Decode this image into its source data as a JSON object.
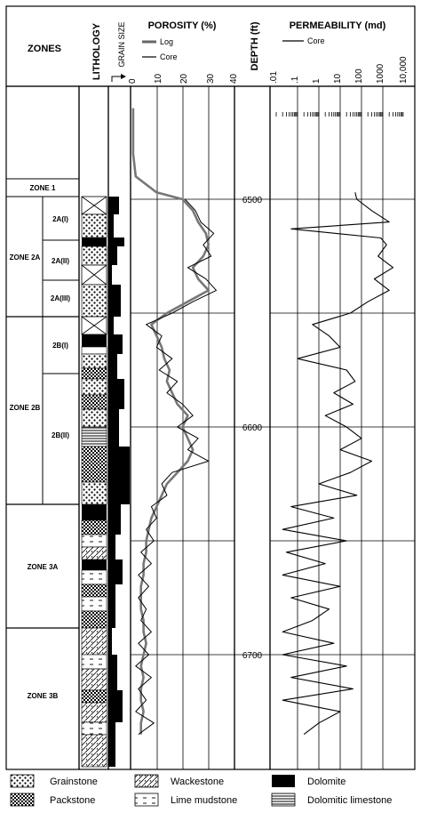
{
  "header": {
    "zones": "ZONES",
    "lithology": "LITHOLOGY",
    "grain_size": "GRAIN SIZE",
    "porosity": "POROSITY (%)",
    "depth": "DEPTH (ft)",
    "permeability": "PERMEABILITY (md)"
  },
  "porosity_legend": {
    "log": "Log",
    "core": "Core"
  },
  "permeability_legend": {
    "core": "Core"
  },
  "porosity_ticks": [
    "0",
    "10",
    "20",
    "30",
    "40"
  ],
  "permeability_ticks": [
    ".01",
    ".1",
    "1",
    "10",
    "100",
    "1000",
    "10,000"
  ],
  "depth_labels": [
    "6500",
    "6600",
    "6700"
  ],
  "zones": {
    "zone1": "ZONE 1",
    "zone2a": "ZONE 2A",
    "zone2a_i": "2A(I)",
    "zone2a_ii": "2A(II)",
    "zone2a_iii": "2A(III)",
    "zone2b": "ZONE 2B",
    "zone2b_i": "2B(I)",
    "zone2b_ii": "2B(II)",
    "zone3a": "ZONE 3A",
    "zone3b": "ZONE 3B"
  },
  "legend": {
    "grainstone": "Grainstone",
    "packstone": "Packstone",
    "wackestone": "Wackestone",
    "lime_mudstone": "Lime mudstone",
    "dolomite": "Dolomite",
    "dolomitic_limestone": "Dolomitic limestone"
  },
  "chart_data": {
    "type": "line",
    "depth_unit": "ft",
    "depth_range": [
      6440,
      6740
    ],
    "porosity": {
      "xlabel": "POROSITY (%)",
      "xlim": [
        0,
        40
      ],
      "log_series": {
        "name": "Log",
        "depth": [
          6460,
          6470,
          6480,
          6490,
          6497,
          6500,
          6505,
          6510,
          6515,
          6520,
          6525,
          6530,
          6535,
          6540,
          6545,
          6550,
          6555,
          6560,
          6565,
          6570,
          6575,
          6580,
          6585,
          6590,
          6595,
          6600,
          6605,
          6610,
          6615,
          6620,
          6625,
          6630,
          6635,
          6640,
          6645,
          6650,
          6655,
          6660,
          6665,
          6670,
          6675,
          6680,
          6685,
          6690,
          6695,
          6700,
          6705,
          6710,
          6715,
          6720,
          6725,
          6730,
          6735
        ],
        "value": [
          1,
          1,
          1,
          2,
          10,
          20,
          24,
          26,
          29,
          30,
          28,
          24,
          26,
          30,
          22,
          14,
          8,
          10,
          12,
          13,
          15,
          14,
          16,
          18,
          22,
          20,
          22,
          24,
          22,
          18,
          14,
          12,
          10,
          8,
          7,
          6,
          6,
          5,
          5,
          4,
          4,
          4,
          5,
          5,
          6,
          5,
          4,
          5,
          4,
          4,
          5,
          4,
          4
        ]
      },
      "core_series": {
        "name": "Core",
        "depth": [
          6500,
          6505,
          6510,
          6515,
          6520,
          6525,
          6530,
          6535,
          6540,
          6545,
          6550,
          6555,
          6560,
          6565,
          6570,
          6575,
          6580,
          6585,
          6590,
          6595,
          6600,
          6605,
          6610,
          6615,
          6620,
          6625,
          6630,
          6635,
          6640,
          6645,
          6650,
          6655,
          6660,
          6665,
          6670,
          6675,
          6680,
          6685,
          6690,
          6695,
          6700,
          6705,
          6710,
          6715,
          6720,
          6725,
          6730,
          6735
        ],
        "value": [
          21,
          25,
          27,
          32,
          28,
          31,
          22,
          29,
          33,
          24,
          16,
          6,
          12,
          10,
          16,
          11,
          18,
          14,
          20,
          24,
          18,
          26,
          22,
          30,
          16,
          12,
          14,
          8,
          10,
          6,
          9,
          4,
          8,
          3,
          7,
          3,
          6,
          4,
          8,
          3,
          7,
          2,
          8,
          3,
          6,
          2,
          9,
          3
        ]
      }
    },
    "permeability": {
      "xlabel": "PERMEABILITY (md)",
      "xscale": "log",
      "xlim": [
        0.01,
        10000
      ],
      "core_series": {
        "name": "Core",
        "depth": [
          6497,
          6500,
          6505,
          6510,
          6513,
          6517,
          6520,
          6525,
          6530,
          6535,
          6540,
          6545,
          6550,
          6555,
          6560,
          6565,
          6570,
          6575,
          6580,
          6585,
          6590,
          6595,
          6600,
          6605,
          6610,
          6615,
          6620,
          6625,
          6630,
          6635,
          6640,
          6645,
          6650,
          6655,
          6660,
          6665,
          6670,
          6675,
          6680,
          6685,
          6690,
          6695,
          6700,
          6705,
          6710,
          6715,
          6720,
          6725,
          6730,
          6735
        ],
        "value": [
          50,
          60,
          300,
          2000,
          0.05,
          800,
          1500,
          600,
          3000,
          400,
          2000,
          200,
          30,
          0.5,
          3,
          10,
          0.1,
          20,
          50,
          5,
          40,
          2,
          20,
          100,
          10,
          300,
          30,
          1,
          60,
          0.05,
          5,
          0.02,
          20,
          0.03,
          2,
          0.02,
          10,
          0.05,
          3,
          0.5,
          0.02,
          5,
          0.02,
          20,
          0.05,
          40,
          0.02,
          10,
          1,
          0.2
        ]
      }
    }
  }
}
